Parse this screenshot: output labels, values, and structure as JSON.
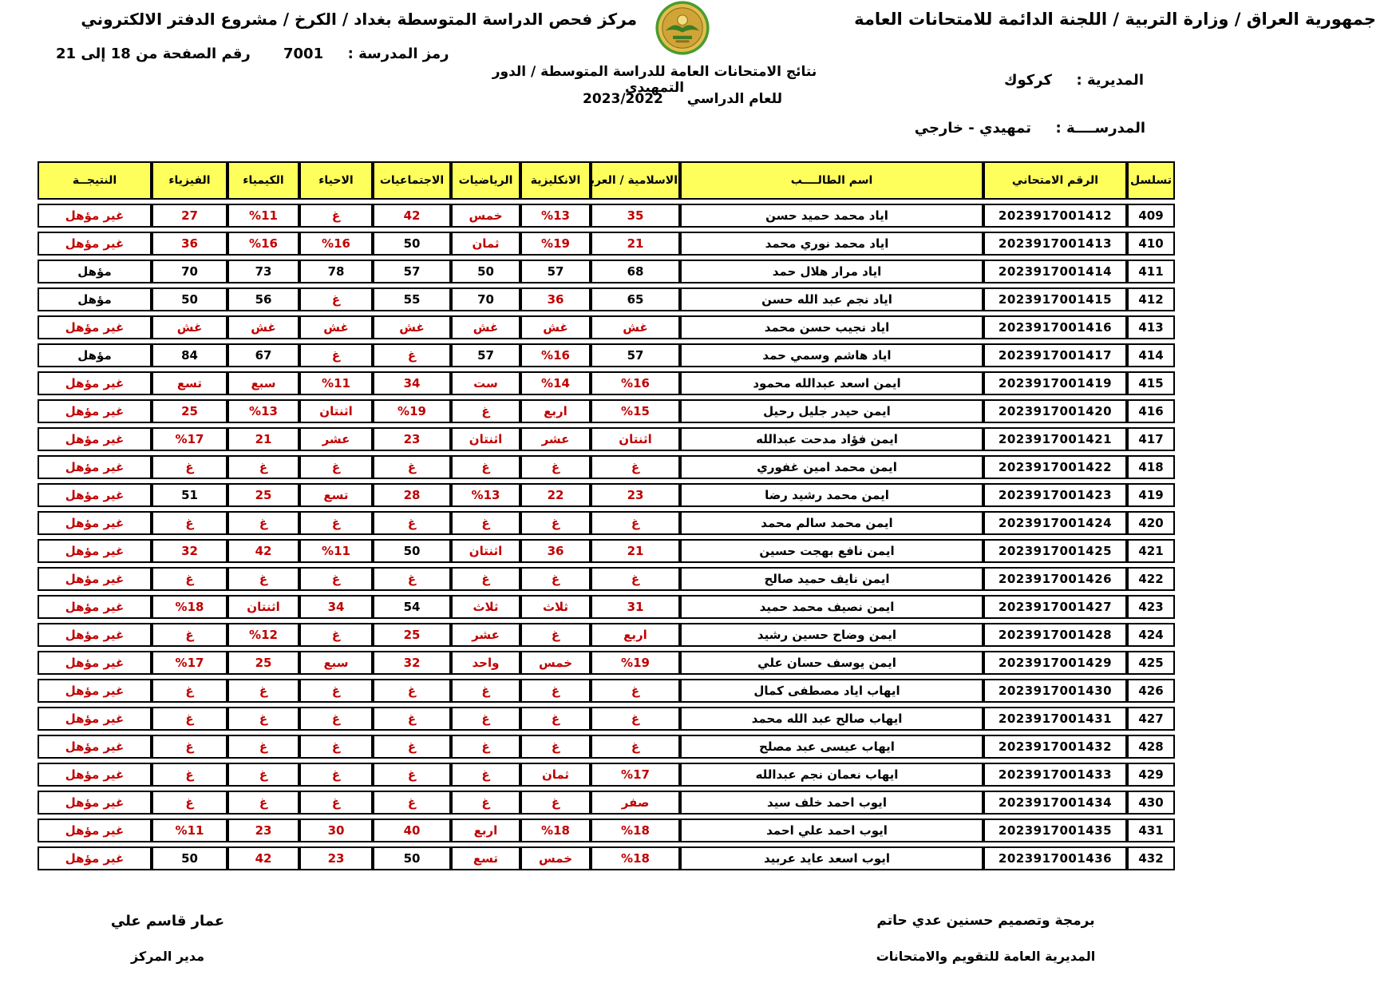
{
  "header": {
    "title_right": "جمهورية العراق / وزارة التربية / اللجنة الدائمة للامتحانات العامة",
    "title_left": "مركز فحص الدراسة المتوسطة بغداد / الكرخ / مشروع الدفتر الالكتروني",
    "page_number": "رقم الصفحة من  18 إلى 21",
    "school_code_label": "رمز المدرسة :",
    "school_code_value": "7001",
    "results_title": "نتائج الامتحانات العامة للدراسة المتوسطة / الدور التمهيدي",
    "year_label": "للعام الدراسي",
    "year_value": "2023/2022",
    "directorate_label": "المديرية :",
    "directorate_value": "كركوك",
    "school_label": "المدرســــة :",
    "school_value": "تمهيدي - خارجي",
    "logo_name": "iraq-ministry-of-education-emblem"
  },
  "table": {
    "columns": [
      "تسلسل",
      "الرقم الامتحاني",
      "اسم الطالــــب",
      "الاسلامية / العربية",
      "الانكليزية",
      "الرياضيات",
      "الاجتماعيات",
      "الاحياء",
      "الكيمياء",
      "الفيزياء",
      "النتيجــة"
    ],
    "rows": [
      {
        "serial": "409",
        "exam": "2023917001412",
        "name": "اياد محمد حميد حسن",
        "arabic": [
          "35",
          1
        ],
        "english": [
          "%13",
          1
        ],
        "math": [
          "خمس",
          1
        ],
        "social": [
          "42",
          1
        ],
        "biology": [
          "غ",
          1
        ],
        "chemistry": [
          "%11",
          1
        ],
        "physics": [
          "27",
          1
        ],
        "result": [
          "غير مؤهل",
          1
        ]
      },
      {
        "serial": "410",
        "exam": "2023917001413",
        "name": "اياد محمد نوري محمد",
        "arabic": [
          "21",
          1
        ],
        "english": [
          "%19",
          1
        ],
        "math": [
          "ثمان",
          1
        ],
        "social": [
          "50",
          0
        ],
        "biology": [
          "%16",
          1
        ],
        "chemistry": [
          "%16",
          1
        ],
        "physics": [
          "36",
          1
        ],
        "result": [
          "غير مؤهل",
          1
        ]
      },
      {
        "serial": "411",
        "exam": "2023917001414",
        "name": "اياد مرار هلال حمد",
        "arabic": [
          "68",
          0
        ],
        "english": [
          "57",
          0
        ],
        "math": [
          "50",
          0
        ],
        "social": [
          "57",
          0
        ],
        "biology": [
          "78",
          0
        ],
        "chemistry": [
          "73",
          0
        ],
        "physics": [
          "70",
          0
        ],
        "result": [
          "مؤهل",
          0
        ]
      },
      {
        "serial": "412",
        "exam": "2023917001415",
        "name": "اياد نجم عبد الله حسن",
        "arabic": [
          "65",
          0
        ],
        "english": [
          "36",
          1
        ],
        "math": [
          "70",
          0
        ],
        "social": [
          "55",
          0
        ],
        "biology": [
          "غ",
          1
        ],
        "chemistry": [
          "56",
          0
        ],
        "physics": [
          "50",
          0
        ],
        "result": [
          "مؤهل",
          0
        ]
      },
      {
        "serial": "413",
        "exam": "2023917001416",
        "name": "اياد نجيب حسن محمد",
        "arabic": [
          "غش",
          1
        ],
        "english": [
          "غش",
          1
        ],
        "math": [
          "غش",
          1
        ],
        "social": [
          "غش",
          1
        ],
        "biology": [
          "غش",
          1
        ],
        "chemistry": [
          "غش",
          1
        ],
        "physics": [
          "غش",
          1
        ],
        "result": [
          "غير مؤهل",
          1
        ]
      },
      {
        "serial": "414",
        "exam": "2023917001417",
        "name": "اياد هاشم وسمي حمد",
        "arabic": [
          "57",
          0
        ],
        "english": [
          "%16",
          1
        ],
        "math": [
          "57",
          0
        ],
        "social": [
          "غ",
          1
        ],
        "biology": [
          "غ",
          1
        ],
        "chemistry": [
          "67",
          0
        ],
        "physics": [
          "84",
          0
        ],
        "result": [
          "مؤهل",
          0
        ]
      },
      {
        "serial": "415",
        "exam": "2023917001419",
        "name": "ايمن اسعد عبدالله محمود",
        "arabic": [
          "%16",
          1
        ],
        "english": [
          "%14",
          1
        ],
        "math": [
          "ست",
          1
        ],
        "social": [
          "34",
          1
        ],
        "biology": [
          "%11",
          1
        ],
        "chemistry": [
          "سبع",
          1
        ],
        "physics": [
          "تسع",
          1
        ],
        "result": [
          "غير مؤهل",
          1
        ]
      },
      {
        "serial": "416",
        "exam": "2023917001420",
        "name": "ايمن حيدر جليل رحيل",
        "arabic": [
          "%15",
          1
        ],
        "english": [
          "اربع",
          1
        ],
        "math": [
          "غ",
          1
        ],
        "social": [
          "%19",
          1
        ],
        "biology": [
          "اثنتان",
          1
        ],
        "chemistry": [
          "%13",
          1
        ],
        "physics": [
          "25",
          1
        ],
        "result": [
          "غير مؤهل",
          1
        ]
      },
      {
        "serial": "417",
        "exam": "2023917001421",
        "name": "ايمن فؤاد مدحت عبدالله",
        "arabic": [
          "اثنتان",
          1
        ],
        "english": [
          "عشر",
          1
        ],
        "math": [
          "اثنتان",
          1
        ],
        "social": [
          "23",
          1
        ],
        "biology": [
          "عشر",
          1
        ],
        "chemistry": [
          "21",
          1
        ],
        "physics": [
          "%17",
          1
        ],
        "result": [
          "غير مؤهل",
          1
        ]
      },
      {
        "serial": "418",
        "exam": "2023917001422",
        "name": "ايمن محمد امين غفوري",
        "arabic": [
          "غ",
          1
        ],
        "english": [
          "غ",
          1
        ],
        "math": [
          "غ",
          1
        ],
        "social": [
          "غ",
          1
        ],
        "biology": [
          "غ",
          1
        ],
        "chemistry": [
          "غ",
          1
        ],
        "physics": [
          "غ",
          1
        ],
        "result": [
          "غير مؤهل",
          1
        ]
      },
      {
        "serial": "419",
        "exam": "2023917001423",
        "name": "ايمن محمد رشيد رضا",
        "arabic": [
          "23",
          1
        ],
        "english": [
          "22",
          1
        ],
        "math": [
          "%13",
          1
        ],
        "social": [
          "28",
          1
        ],
        "biology": [
          "تسع",
          1
        ],
        "chemistry": [
          "25",
          1
        ],
        "physics": [
          "51",
          0
        ],
        "result": [
          "غير مؤهل",
          1
        ]
      },
      {
        "serial": "420",
        "exam": "2023917001424",
        "name": "ايمن محمد سالم محمد",
        "arabic": [
          "غ",
          1
        ],
        "english": [
          "غ",
          1
        ],
        "math": [
          "غ",
          1
        ],
        "social": [
          "غ",
          1
        ],
        "biology": [
          "غ",
          1
        ],
        "chemistry": [
          "غ",
          1
        ],
        "physics": [
          "غ",
          1
        ],
        "result": [
          "غير مؤهل",
          1
        ]
      },
      {
        "serial": "421",
        "exam": "2023917001425",
        "name": "ايمن نافع بهجت حسين",
        "arabic": [
          "21",
          1
        ],
        "english": [
          "36",
          1
        ],
        "math": [
          "اثنتان",
          1
        ],
        "social": [
          "50",
          0
        ],
        "biology": [
          "%11",
          1
        ],
        "chemistry": [
          "42",
          1
        ],
        "physics": [
          "32",
          1
        ],
        "result": [
          "غير مؤهل",
          1
        ]
      },
      {
        "serial": "422",
        "exam": "2023917001426",
        "name": "ايمن نايف حميد صالح",
        "arabic": [
          "غ",
          1
        ],
        "english": [
          "غ",
          1
        ],
        "math": [
          "غ",
          1
        ],
        "social": [
          "غ",
          1
        ],
        "biology": [
          "غ",
          1
        ],
        "chemistry": [
          "غ",
          1
        ],
        "physics": [
          "غ",
          1
        ],
        "result": [
          "غير مؤهل",
          1
        ]
      },
      {
        "serial": "423",
        "exam": "2023917001427",
        "name": "ايمن نصيف محمد حميد",
        "arabic": [
          "31",
          1
        ],
        "english": [
          "ثلاث",
          1
        ],
        "math": [
          "ثلاث",
          1
        ],
        "social": [
          "54",
          0
        ],
        "biology": [
          "34",
          1
        ],
        "chemistry": [
          "اثنتان",
          1
        ],
        "physics": [
          "%18",
          1
        ],
        "result": [
          "غير مؤهل",
          1
        ]
      },
      {
        "serial": "424",
        "exam": "2023917001428",
        "name": "ايمن وضاح حسين رشيد",
        "arabic": [
          "اربع",
          1
        ],
        "english": [
          "غ",
          1
        ],
        "math": [
          "عشر",
          1
        ],
        "social": [
          "25",
          1
        ],
        "biology": [
          "غ",
          1
        ],
        "chemistry": [
          "%12",
          1
        ],
        "physics": [
          "غ",
          1
        ],
        "result": [
          "غير مؤهل",
          1
        ]
      },
      {
        "serial": "425",
        "exam": "2023917001429",
        "name": "ايمن يوسف حسان علي",
        "arabic": [
          "%19",
          1
        ],
        "english": [
          "خمس",
          1
        ],
        "math": [
          "واحد",
          1
        ],
        "social": [
          "32",
          1
        ],
        "biology": [
          "سبع",
          1
        ],
        "chemistry": [
          "25",
          1
        ],
        "physics": [
          "%17",
          1
        ],
        "result": [
          "غير مؤهل",
          1
        ]
      },
      {
        "serial": "426",
        "exam": "2023917001430",
        "name": "ايهاب اياد مصطفى كمال",
        "arabic": [
          "غ",
          1
        ],
        "english": [
          "غ",
          1
        ],
        "math": [
          "غ",
          1
        ],
        "social": [
          "غ",
          1
        ],
        "biology": [
          "غ",
          1
        ],
        "chemistry": [
          "غ",
          1
        ],
        "physics": [
          "غ",
          1
        ],
        "result": [
          "غير مؤهل",
          1
        ]
      },
      {
        "serial": "427",
        "exam": "2023917001431",
        "name": "ايهاب صالح عبد الله محمد",
        "arabic": [
          "غ",
          1
        ],
        "english": [
          "غ",
          1
        ],
        "math": [
          "غ",
          1
        ],
        "social": [
          "غ",
          1
        ],
        "biology": [
          "غ",
          1
        ],
        "chemistry": [
          "غ",
          1
        ],
        "physics": [
          "غ",
          1
        ],
        "result": [
          "غير مؤهل",
          1
        ]
      },
      {
        "serial": "428",
        "exam": "2023917001432",
        "name": "ايهاب عيسى عبد مصلح",
        "arabic": [
          "غ",
          1
        ],
        "english": [
          "غ",
          1
        ],
        "math": [
          "غ",
          1
        ],
        "social": [
          "غ",
          1
        ],
        "biology": [
          "غ",
          1
        ],
        "chemistry": [
          "غ",
          1
        ],
        "physics": [
          "غ",
          1
        ],
        "result": [
          "غير مؤهل",
          1
        ]
      },
      {
        "serial": "429",
        "exam": "2023917001433",
        "name": "ايهاب نعمان نجم عبدالله",
        "arabic": [
          "%17",
          1
        ],
        "english": [
          "ثمان",
          1
        ],
        "math": [
          "غ",
          1
        ],
        "social": [
          "غ",
          1
        ],
        "biology": [
          "غ",
          1
        ],
        "chemistry": [
          "غ",
          1
        ],
        "physics": [
          "غ",
          1
        ],
        "result": [
          "غير مؤهل",
          1
        ]
      },
      {
        "serial": "430",
        "exam": "2023917001434",
        "name": "ايوب احمد خلف سيد",
        "arabic": [
          "صفر",
          1
        ],
        "english": [
          "غ",
          1
        ],
        "math": [
          "غ",
          1
        ],
        "social": [
          "غ",
          1
        ],
        "biology": [
          "غ",
          1
        ],
        "chemistry": [
          "غ",
          1
        ],
        "physics": [
          "غ",
          1
        ],
        "result": [
          "غير مؤهل",
          1
        ]
      },
      {
        "serial": "431",
        "exam": "2023917001435",
        "name": "ايوب احمد علي احمد",
        "arabic": [
          "%18",
          1
        ],
        "english": [
          "%18",
          1
        ],
        "math": [
          "اربع",
          1
        ],
        "social": [
          "40",
          1
        ],
        "biology": [
          "30",
          1
        ],
        "chemistry": [
          "23",
          1
        ],
        "physics": [
          "%11",
          1
        ],
        "result": [
          "غير مؤهل",
          1
        ]
      },
      {
        "serial": "432",
        "exam": "2023917001436",
        "name": "ايوب اسعد عايد عربيد",
        "arabic": [
          "%18",
          1
        ],
        "english": [
          "خمس",
          1
        ],
        "math": [
          "تسع",
          1
        ],
        "social": [
          "50",
          0
        ],
        "biology": [
          "23",
          1
        ],
        "chemistry": [
          "42",
          1
        ],
        "physics": [
          "50",
          0
        ],
        "result": [
          "غير مؤهل",
          1
        ]
      }
    ]
  },
  "footer": {
    "signature_name": "عمار قاسم علي",
    "signature_title": "مدير المركز",
    "credit": "برمجة وتصميم حسنين عدي حاتم",
    "credit_org": "المديرية العامة للتقويم والامتحانات"
  },
  "colors": {
    "highlight_yellow": "#ffff5c",
    "fail_red": "#c00000",
    "text_black": "#000000",
    "border_black": "#000000",
    "logo_green": "#4a9b2f",
    "logo_gold": "#e3bd4a"
  }
}
